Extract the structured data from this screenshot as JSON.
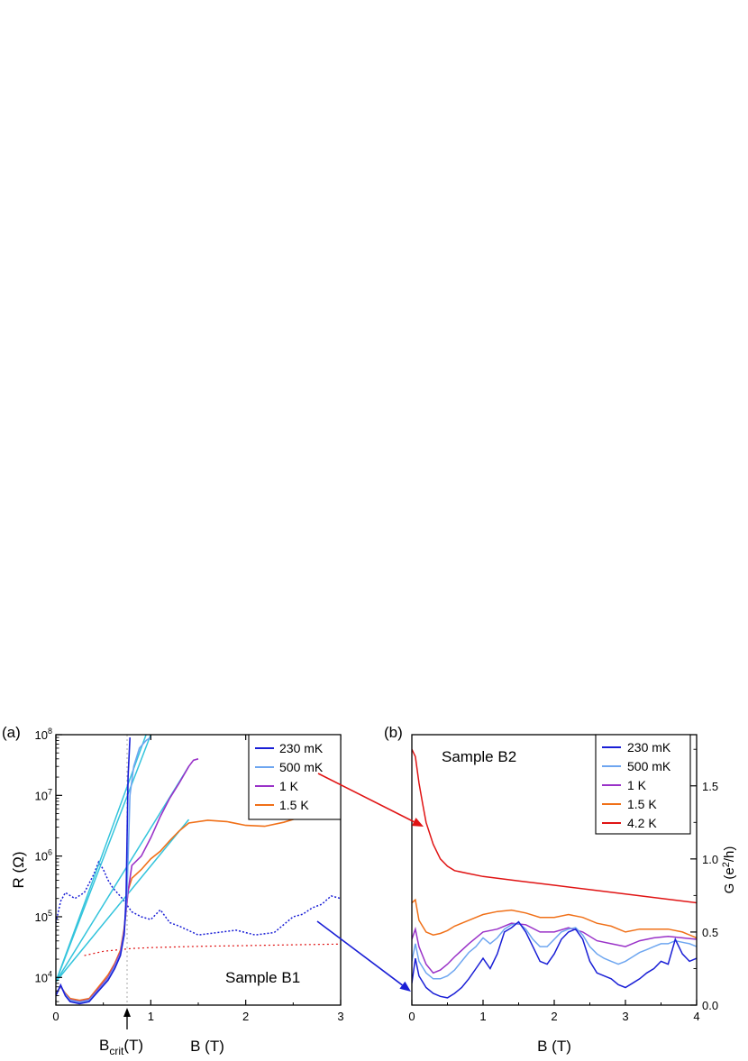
{
  "colors": {
    "c230mK": "#1a1fd6",
    "c500mK": "#6ea6f0",
    "c1K": "#9a32c8",
    "c1p5K": "#f07018",
    "c4p2K": "#e01414",
    "fit": "#33c4dc",
    "vline": "#b8b8b8"
  },
  "chart_data": [
    {
      "panel_label": "(a)",
      "type": "line",
      "xlabel": "B (T)",
      "ylabel": "R (Ω)",
      "xlim": [
        0,
        3
      ],
      "ylim": [
        3500,
        100000000
      ],
      "yscale": "log",
      "x_ticks": [
        "0",
        "1",
        "2",
        "3"
      ],
      "y_ticks": [
        {
          "base": "10",
          "exp": "4"
        },
        {
          "base": "10",
          "exp": "5"
        },
        {
          "base": "10",
          "exp": "6"
        },
        {
          "base": "10",
          "exp": "7"
        },
        {
          "base": "10",
          "exp": "8"
        }
      ],
      "annotation": "Sample B1",
      "marker": {
        "base": "B",
        "sub": "crit",
        "tail": "(T)",
        "x": 0.75
      },
      "legend": [
        "230 mK",
        "500 mK",
        "1 K",
        "1.5 K"
      ],
      "legend_position": "top-right",
      "series": [
        {
          "name": "230 mK",
          "color_key": "c230mK",
          "x": [
            0,
            0.05,
            0.1,
            0.15,
            0.25,
            0.35,
            0.45,
            0.55,
            0.62,
            0.68,
            0.72,
            0.74,
            0.76,
            0.78
          ],
          "y": [
            5000,
            7500,
            5000,
            4000,
            3700,
            4000,
            6000,
            9000,
            14000,
            23000,
            50000,
            200000,
            20000000,
            90000000
          ]
        },
        {
          "name": "500 mK",
          "color_key": "c500mK",
          "x": [
            0,
            0.05,
            0.1,
            0.15,
            0.25,
            0.35,
            0.45,
            0.55,
            0.62,
            0.68,
            0.72,
            0.75,
            0.78,
            0.82,
            0.88,
            0.95,
            1.0
          ],
          "y": [
            5200,
            7300,
            5200,
            4200,
            3900,
            4200,
            6200,
            9500,
            15000,
            24000,
            55000,
            250000,
            10000000,
            30000000,
            60000000,
            80000000,
            90000000
          ]
        },
        {
          "name": "1 K",
          "color_key": "c1K",
          "x": [
            0,
            0.05,
            0.1,
            0.15,
            0.25,
            0.35,
            0.45,
            0.55,
            0.62,
            0.68,
            0.72,
            0.76,
            0.8,
            0.9,
            1.0,
            1.1,
            1.2,
            1.3,
            1.4,
            1.45,
            1.5
          ],
          "y": [
            5300,
            7200,
            5300,
            4300,
            4000,
            4300,
            6500,
            10000,
            16000,
            26000,
            60000,
            260000,
            700000,
            1000000,
            2000000,
            4500000,
            9000000,
            16000000,
            30000000,
            38000000,
            40000000
          ]
        },
        {
          "name": "1.5 K",
          "color_key": "c1p5K",
          "x": [
            0,
            0.05,
            0.1,
            0.15,
            0.25,
            0.35,
            0.45,
            0.55,
            0.62,
            0.68,
            0.72,
            0.76,
            0.8,
            0.9,
            1.0,
            1.1,
            1.2,
            1.3,
            1.4,
            1.6,
            1.8,
            2.0,
            2.2,
            2.4,
            2.6
          ],
          "y": [
            5500,
            7000,
            5500,
            4500,
            4200,
            4500,
            7000,
            11000,
            17000,
            28000,
            65000,
            270000,
            430000,
            600000,
            900000,
            1200000,
            1800000,
            2600000,
            3500000,
            3900000,
            3700000,
            3200000,
            3100000,
            3600000,
            4500000
          ]
        }
      ],
      "dotted_series": [
        {
          "name": "",
          "color_key": "c230mK",
          "x": [
            0,
            0.05,
            0.1,
            0.2,
            0.3,
            0.4,
            0.45,
            0.5,
            0.55,
            0.6,
            0.7,
            0.8,
            0.9,
            1.0,
            1.1,
            1.2,
            1.3,
            1.5,
            1.7,
            1.9,
            2.1,
            2.3,
            2.5,
            2.6,
            2.7,
            2.8,
            2.9,
            3.0
          ],
          "y": [
            80000,
            180000,
            250000,
            200000,
            250000,
            500000,
            800000,
            600000,
            400000,
            300000,
            200000,
            120000,
            100000,
            90000,
            130000,
            80000,
            70000,
            50000,
            55000,
            60000,
            50000,
            55000,
            100000,
            110000,
            140000,
            160000,
            220000,
            200000
          ]
        },
        {
          "name": "",
          "color_key": "c4p2K",
          "x": [
            0.3,
            0.5,
            0.7,
            0.8,
            1.0,
            1.5,
            2.0,
            2.5,
            3.0
          ],
          "y": [
            23000,
            27000,
            29000,
            30000,
            31000,
            32500,
            33500,
            34500,
            35500
          ]
        }
      ],
      "fit_lines": [
        {
          "x": [
            0,
            0.95
          ],
          "y": [
            8500,
            100000000
          ]
        },
        {
          "x": [
            0,
            1.0
          ],
          "y": [
            8500,
            100000000
          ]
        },
        {
          "x": [
            0,
            1.4
          ],
          "y": [
            8500,
            30000000
          ]
        },
        {
          "x": [
            0,
            1.4
          ],
          "y": [
            8500,
            4000000
          ]
        }
      ]
    },
    {
      "panel_label": "(b)",
      "type": "line",
      "xlabel": "B (T)",
      "ylabel": "G (e²/h)",
      "ylabel_parts": {
        "pre": "G (e",
        "sup": "2",
        "post": "/h)"
      },
      "xlim": [
        0,
        4
      ],
      "ylim": [
        0,
        1.85
      ],
      "x_ticks": [
        "0",
        "1",
        "2",
        "3",
        "4"
      ],
      "y_ticks": [
        "0.0",
        "0.5",
        "1.0",
        "1.5"
      ],
      "y_tick_values": [
        0,
        0.5,
        1.0,
        1.5
      ],
      "annotation": "Sample B2",
      "legend": [
        "230 mK",
        "500 mK",
        "1 K",
        "1.5 K",
        "4.2 K"
      ],
      "legend_position": "top-right",
      "series": [
        {
          "name": "230 mK",
          "color_key": "c230mK",
          "x": [
            0,
            0.05,
            0.1,
            0.2,
            0.3,
            0.4,
            0.5,
            0.6,
            0.7,
            0.8,
            0.9,
            1.0,
            1.1,
            1.2,
            1.3,
            1.4,
            1.5,
            1.6,
            1.7,
            1.8,
            1.9,
            2.0,
            2.1,
            2.2,
            2.3,
            2.4,
            2.5,
            2.6,
            2.7,
            2.8,
            2.9,
            3.0,
            3.1,
            3.2,
            3.3,
            3.4,
            3.5,
            3.6,
            3.7,
            3.8,
            3.9,
            4.0
          ],
          "y": [
            0.15,
            0.32,
            0.2,
            0.12,
            0.08,
            0.06,
            0.05,
            0.08,
            0.12,
            0.18,
            0.25,
            0.32,
            0.25,
            0.35,
            0.5,
            0.53,
            0.57,
            0.5,
            0.4,
            0.3,
            0.28,
            0.35,
            0.45,
            0.5,
            0.52,
            0.45,
            0.3,
            0.22,
            0.2,
            0.18,
            0.14,
            0.12,
            0.15,
            0.18,
            0.22,
            0.25,
            0.3,
            0.28,
            0.45,
            0.35,
            0.3,
            0.32
          ]
        },
        {
          "name": "500 mK",
          "color_key": "c500mK",
          "x": [
            0,
            0.05,
            0.1,
            0.2,
            0.3,
            0.4,
            0.5,
            0.6,
            0.7,
            0.8,
            0.9,
            1.0,
            1.1,
            1.2,
            1.3,
            1.4,
            1.5,
            1.6,
            1.7,
            1.8,
            1.9,
            2.0,
            2.1,
            2.2,
            2.3,
            2.4,
            2.5,
            2.6,
            2.7,
            2.8,
            2.9,
            3.0,
            3.1,
            3.2,
            3.3,
            3.4,
            3.5,
            3.6,
            3.7,
            3.8,
            3.9,
            4.0
          ],
          "y": [
            0.3,
            0.42,
            0.3,
            0.22,
            0.18,
            0.18,
            0.2,
            0.24,
            0.3,
            0.36,
            0.4,
            0.46,
            0.42,
            0.46,
            0.52,
            0.55,
            0.56,
            0.52,
            0.45,
            0.4,
            0.4,
            0.45,
            0.5,
            0.52,
            0.53,
            0.48,
            0.4,
            0.35,
            0.32,
            0.3,
            0.28,
            0.3,
            0.33,
            0.36,
            0.38,
            0.4,
            0.42,
            0.42,
            0.44,
            0.43,
            0.42,
            0.4
          ]
        },
        {
          "name": "1 K",
          "color_key": "c1K",
          "x": [
            0,
            0.05,
            0.1,
            0.2,
            0.3,
            0.4,
            0.5,
            0.6,
            0.8,
            1.0,
            1.2,
            1.4,
            1.6,
            1.8,
            2.0,
            2.2,
            2.4,
            2.6,
            2.8,
            3.0,
            3.2,
            3.4,
            3.6,
            3.8,
            4.0
          ],
          "y": [
            0.45,
            0.52,
            0.4,
            0.28,
            0.22,
            0.24,
            0.28,
            0.33,
            0.42,
            0.5,
            0.52,
            0.56,
            0.55,
            0.5,
            0.5,
            0.53,
            0.5,
            0.44,
            0.42,
            0.4,
            0.44,
            0.46,
            0.47,
            0.46,
            0.45
          ]
        },
        {
          "name": "1.5 K",
          "color_key": "c1p5K",
          "x": [
            0,
            0.05,
            0.1,
            0.2,
            0.3,
            0.4,
            0.5,
            0.6,
            0.8,
            1.0,
            1.2,
            1.4,
            1.6,
            1.8,
            2.0,
            2.2,
            2.4,
            2.6,
            2.8,
            3.0,
            3.2,
            3.4,
            3.6,
            3.8,
            4.0
          ],
          "y": [
            0.7,
            0.72,
            0.58,
            0.5,
            0.48,
            0.49,
            0.51,
            0.54,
            0.58,
            0.62,
            0.64,
            0.65,
            0.63,
            0.6,
            0.6,
            0.62,
            0.6,
            0.56,
            0.54,
            0.5,
            0.52,
            0.52,
            0.52,
            0.5,
            0.46
          ]
        },
        {
          "name": "4.2 K",
          "color_key": "c4p2K",
          "x": [
            0,
            0.05,
            0.1,
            0.15,
            0.2,
            0.3,
            0.4,
            0.5,
            0.6,
            0.8,
            1.0,
            1.5,
            2.0,
            2.5,
            3.0,
            3.5,
            4.0
          ],
          "y": [
            1.75,
            1.7,
            1.52,
            1.38,
            1.25,
            1.1,
            1.0,
            0.95,
            0.92,
            0.9,
            0.88,
            0.85,
            0.82,
            0.79,
            0.76,
            0.73,
            0.7
          ]
        }
      ]
    }
  ]
}
